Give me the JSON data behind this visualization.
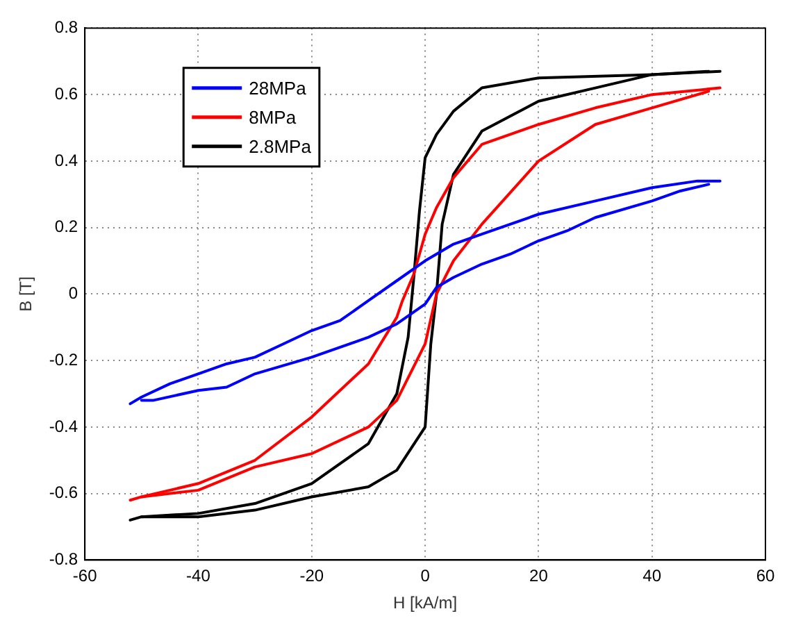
{
  "chart_data": {
    "type": "line",
    "xlabel": "H [kA/m]",
    "ylabel": "B [T]",
    "xlim": [
      -60,
      60
    ],
    "xticks": [
      -60,
      -40,
      -20,
      0,
      20,
      40,
      60
    ],
    "ylim": [
      -0.8,
      0.8
    ],
    "yticks": [
      -0.8,
      -0.6,
      -0.4,
      -0.2,
      0,
      0.2,
      0.4,
      0.6,
      0.8
    ],
    "grid": true,
    "legend": "top left",
    "marker": "none",
    "line_style": "solid",
    "series": [
      {
        "name": "28MPa",
        "color": "#0000ff",
        "x": [
          -52,
          -50,
          -45,
          -40,
          -35,
          -30,
          -25,
          -20,
          -15,
          -10,
          -5,
          0,
          5,
          10,
          20,
          30,
          40,
          48,
          52
        ],
        "values": [
          -0.33,
          -0.31,
          -0.27,
          -0.24,
          -0.21,
          -0.19,
          -0.15,
          -0.11,
          -0.08,
          -0.02,
          0.04,
          0.1,
          0.15,
          0.18,
          0.24,
          0.28,
          0.32,
          0.34,
          0.34
        ]
      },
      {
        "color": "#0000ff",
        "x": [
          -50,
          -48,
          -40,
          -35,
          -30,
          -20,
          -10,
          -5,
          0,
          2,
          5,
          10,
          15,
          20,
          25,
          30,
          40,
          45,
          50
        ],
        "values": [
          -0.32,
          -0.32,
          -0.29,
          -0.28,
          -0.24,
          -0.19,
          -0.13,
          -0.09,
          -0.03,
          0.02,
          0.05,
          0.09,
          0.12,
          0.16,
          0.19,
          0.23,
          0.28,
          0.31,
          0.33
        ]
      },
      {
        "name": "8MPa",
        "color": "#ff0000",
        "x": [
          -52,
          -50,
          -40,
          -30,
          -20,
          -10,
          -5,
          -4,
          -2,
          0,
          2,
          5,
          10,
          20,
          30,
          40,
          52
        ],
        "values": [
          -0.62,
          -0.61,
          -0.57,
          -0.5,
          -0.37,
          -0.21,
          -0.07,
          -0.02,
          0.06,
          0.18,
          0.26,
          0.35,
          0.45,
          0.51,
          0.56,
          0.6,
          0.62
        ]
      },
      {
        "color": "#ff0000",
        "x": [
          -50,
          -40,
          -30,
          -20,
          -10,
          -5,
          0,
          2,
          5,
          10,
          20,
          30,
          40,
          50
        ],
        "values": [
          -0.61,
          -0.59,
          -0.52,
          -0.48,
          -0.4,
          -0.32,
          -0.15,
          0.0,
          0.1,
          0.21,
          0.4,
          0.51,
          0.56,
          0.61
        ]
      },
      {
        "name": "2.8MPa",
        "color": "#000000",
        "x": [
          -52,
          -50,
          -40,
          -30,
          -20,
          -10,
          -5,
          -3,
          -2,
          -1,
          0,
          2,
          5,
          10,
          20,
          40,
          52
        ],
        "values": [
          -0.68,
          -0.67,
          -0.66,
          -0.63,
          -0.57,
          -0.45,
          -0.3,
          -0.13,
          0.05,
          0.25,
          0.41,
          0.48,
          0.55,
          0.62,
          0.65,
          0.66,
          0.67
        ]
      },
      {
        "color": "#000000",
        "x": [
          -50,
          -40,
          -30,
          -20,
          -10,
          -5,
          0,
          1,
          2,
          3,
          5,
          10,
          20,
          30,
          40,
          50
        ],
        "values": [
          -0.67,
          -0.67,
          -0.65,
          -0.61,
          -0.58,
          -0.53,
          -0.4,
          -0.15,
          0.0,
          0.21,
          0.36,
          0.49,
          0.58,
          0.62,
          0.66,
          0.67
        ]
      }
    ]
  }
}
